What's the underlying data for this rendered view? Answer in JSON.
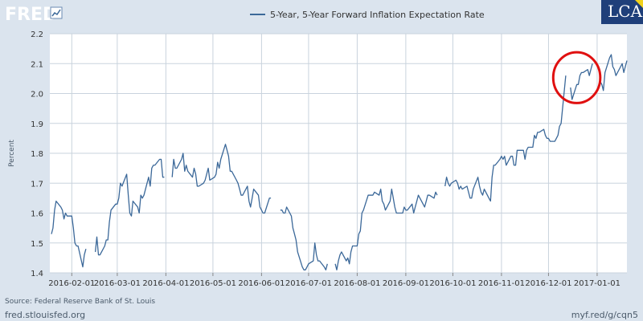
{
  "header": {
    "logo_text": "FRED",
    "badge_text": "LCA"
  },
  "footer": {
    "source": "Source: Federal Reserve Bank of St. Louis",
    "site": "fred.stlouisfed.org",
    "short_url": "myf.red/g/cqn5"
  },
  "colors": {
    "line": "#3b6899",
    "circle": "#e01010",
    "frame": "#dbe4ee",
    "grid": "#c9d3dd",
    "badge_bg": "#1f3f7a",
    "badge_accent": "#f2d21a"
  },
  "annotation": {
    "type": "circle",
    "x_center": "2016-12-19",
    "y_center": 2.053,
    "x_halfwidth_days": 15,
    "y_halfwidth": 0.085
  },
  "chart_data": {
    "type": "line",
    "title": "",
    "xlabel": "",
    "ylabel": "Percent",
    "ylim": [
      1.4,
      2.2
    ],
    "yticks": [
      1.4,
      1.5,
      1.6,
      1.7,
      1.8,
      1.9,
      2.0,
      2.1,
      2.2
    ],
    "ytick_labels": [
      "1.4",
      "1.5",
      "1.6",
      "1.7",
      "1.8",
      "1.9",
      "2.0",
      "2.1",
      "2.2"
    ],
    "xlim": [
      "2016-01-18",
      "2017-01-20"
    ],
    "xticks": [
      "2016-02-01",
      "2016-03-01",
      "2016-04-01",
      "2016-05-01",
      "2016-06-01",
      "2016-07-01",
      "2016-08-01",
      "2016-09-01",
      "2016-10-01",
      "2016-11-01",
      "2016-12-01",
      "2017-01-01"
    ],
    "grid": true,
    "legend": "top-center",
    "series": [
      {
        "name": "5-Year, 5-Year Forward Inflation Expectation Rate",
        "points": [
          [
            "2016-01-19",
            1.53
          ],
          [
            "2016-01-20",
            1.55
          ],
          [
            "2016-01-21",
            1.61
          ],
          [
            "2016-01-22",
            1.64
          ],
          [
            "2016-01-25",
            1.62
          ],
          [
            "2016-01-26",
            1.61
          ],
          [
            "2016-01-27",
            1.58
          ],
          [
            "2016-01-28",
            1.6
          ],
          [
            "2016-01-29",
            1.59
          ],
          [
            "2016-02-01",
            1.59
          ],
          [
            "2016-02-02",
            1.55
          ],
          [
            "2016-02-03",
            1.5
          ],
          [
            "2016-02-04",
            1.49
          ],
          [
            "2016-02-05",
            1.49
          ],
          [
            "2016-02-08",
            1.42
          ],
          [
            "2016-02-09",
            1.46
          ],
          [
            "2016-02-10",
            1.48
          ],
          [
            "2016-02-11",
            null
          ],
          [
            "2016-02-16",
            1.47
          ],
          [
            "2016-02-17",
            1.52
          ],
          [
            "2016-02-18",
            1.46
          ],
          [
            "2016-02-19",
            1.46
          ],
          [
            "2016-02-22",
            1.49
          ],
          [
            "2016-02-23",
            1.51
          ],
          [
            "2016-02-24",
            1.51
          ],
          [
            "2016-02-25",
            1.57
          ],
          [
            "2016-02-26",
            1.61
          ],
          [
            "2016-02-29",
            1.63
          ],
          [
            "2016-03-01",
            1.63
          ],
          [
            "2016-03-02",
            1.65
          ],
          [
            "2016-03-03",
            1.7
          ],
          [
            "2016-03-04",
            1.69
          ],
          [
            "2016-03-07",
            1.73
          ],
          [
            "2016-03-08",
            1.66
          ],
          [
            "2016-03-09",
            1.6
          ],
          [
            "2016-03-10",
            1.59
          ],
          [
            "2016-03-11",
            1.64
          ],
          [
            "2016-03-14",
            1.62
          ],
          [
            "2016-03-15",
            1.6
          ],
          [
            "2016-03-16",
            1.66
          ],
          [
            "2016-03-17",
            1.65
          ],
          [
            "2016-03-18",
            1.66
          ],
          [
            "2016-03-21",
            1.72
          ],
          [
            "2016-03-22",
            1.69
          ],
          [
            "2016-03-23",
            1.75
          ],
          [
            "2016-03-24",
            1.76
          ],
          [
            "2016-03-25",
            1.76
          ],
          [
            "2016-03-28",
            1.78
          ],
          [
            "2016-03-29",
            1.78
          ],
          [
            "2016-03-30",
            1.72
          ],
          [
            "2016-03-31",
            1.72
          ],
          [
            "2016-04-01",
            null
          ],
          [
            "2016-04-05",
            1.72
          ],
          [
            "2016-04-06",
            1.78
          ],
          [
            "2016-04-07",
            1.75
          ],
          [
            "2016-04-08",
            1.75
          ],
          [
            "2016-04-11",
            1.78
          ],
          [
            "2016-04-12",
            1.8
          ],
          [
            "2016-04-13",
            1.74
          ],
          [
            "2016-04-14",
            1.76
          ],
          [
            "2016-04-15",
            1.74
          ],
          [
            "2016-04-18",
            1.72
          ],
          [
            "2016-04-19",
            1.75
          ],
          [
            "2016-04-20",
            1.73
          ],
          [
            "2016-04-21",
            1.69
          ],
          [
            "2016-04-22",
            1.69
          ],
          [
            "2016-04-25",
            1.7
          ],
          [
            "2016-04-26",
            1.71
          ],
          [
            "2016-04-27",
            1.73
          ],
          [
            "2016-04-28",
            1.75
          ],
          [
            "2016-04-29",
            1.71
          ],
          [
            "2016-05-02",
            1.72
          ],
          [
            "2016-05-03",
            1.73
          ],
          [
            "2016-05-04",
            1.77
          ],
          [
            "2016-05-05",
            1.75
          ],
          [
            "2016-05-06",
            1.78
          ],
          [
            "2016-05-09",
            1.83
          ],
          [
            "2016-05-10",
            1.81
          ],
          [
            "2016-05-11",
            1.79
          ],
          [
            "2016-05-12",
            1.74
          ],
          [
            "2016-05-13",
            1.74
          ],
          [
            "2016-05-16",
            1.71
          ],
          [
            "2016-05-17",
            1.7
          ],
          [
            "2016-05-18",
            1.68
          ],
          [
            "2016-05-19",
            1.66
          ],
          [
            "2016-05-20",
            1.66
          ],
          [
            "2016-05-23",
            1.69
          ],
          [
            "2016-05-24",
            1.64
          ],
          [
            "2016-05-25",
            1.62
          ],
          [
            "2016-05-26",
            1.65
          ],
          [
            "2016-05-27",
            1.68
          ],
          [
            "2016-05-30",
            1.66
          ],
          [
            "2016-05-31",
            1.62
          ],
          [
            "2016-06-01",
            1.61
          ],
          [
            "2016-06-02",
            1.6
          ],
          [
            "2016-06-03",
            1.6
          ],
          [
            "2016-06-06",
            1.65
          ],
          [
            "2016-06-07",
            1.65
          ],
          [
            "2016-06-08",
            null
          ],
          [
            "2016-06-13",
            1.61
          ],
          [
            "2016-06-14",
            1.61
          ],
          [
            "2016-06-15",
            1.6
          ],
          [
            "2016-06-16",
            1.6
          ],
          [
            "2016-06-17",
            1.62
          ],
          [
            "2016-06-20",
            1.59
          ],
          [
            "2016-06-21",
            1.55
          ],
          [
            "2016-06-22",
            1.53
          ],
          [
            "2016-06-23",
            1.51
          ],
          [
            "2016-06-24",
            1.47
          ],
          [
            "2016-06-27",
            1.42
          ],
          [
            "2016-06-28",
            1.41
          ],
          [
            "2016-06-29",
            1.41
          ],
          [
            "2016-06-30",
            1.42
          ],
          [
            "2016-07-01",
            1.43
          ],
          [
            "2016-07-04",
            1.44
          ],
          [
            "2016-07-05",
            1.5
          ],
          [
            "2016-07-06",
            1.46
          ],
          [
            "2016-07-07",
            1.44
          ],
          [
            "2016-07-08",
            1.44
          ],
          [
            "2016-07-11",
            1.42
          ],
          [
            "2016-07-12",
            1.41
          ],
          [
            "2016-07-13",
            1.43
          ],
          [
            "2016-07-14",
            null
          ],
          [
            "2016-07-18",
            1.43
          ],
          [
            "2016-07-19",
            1.41
          ],
          [
            "2016-07-20",
            1.44
          ],
          [
            "2016-07-21",
            1.46
          ],
          [
            "2016-07-22",
            1.47
          ],
          [
            "2016-07-25",
            1.44
          ],
          [
            "2016-07-26",
            1.45
          ],
          [
            "2016-07-27",
            1.43
          ],
          [
            "2016-07-28",
            1.47
          ],
          [
            "2016-07-29",
            1.49
          ],
          [
            "2016-08-01",
            1.49
          ],
          [
            "2016-08-02",
            1.53
          ],
          [
            "2016-08-03",
            1.54
          ],
          [
            "2016-08-04",
            1.6
          ],
          [
            "2016-08-05",
            1.61
          ],
          [
            "2016-08-08",
            1.66
          ],
          [
            "2016-08-09",
            1.66
          ],
          [
            "2016-08-10",
            1.66
          ],
          [
            "2016-08-11",
            1.66
          ],
          [
            "2016-08-12",
            1.67
          ],
          [
            "2016-08-15",
            1.66
          ],
          [
            "2016-08-16",
            1.68
          ],
          [
            "2016-08-17",
            1.64
          ],
          [
            "2016-08-18",
            1.63
          ],
          [
            "2016-08-19",
            1.61
          ],
          [
            "2016-08-22",
            1.64
          ],
          [
            "2016-08-23",
            1.68
          ],
          [
            "2016-08-24",
            1.65
          ],
          [
            "2016-08-25",
            1.62
          ],
          [
            "2016-08-26",
            1.6
          ],
          [
            "2016-08-29",
            1.6
          ],
          [
            "2016-08-30",
            1.6
          ],
          [
            "2016-08-31",
            1.62
          ],
          [
            "2016-09-01",
            1.61
          ],
          [
            "2016-09-02",
            1.61
          ],
          [
            "2016-09-05",
            1.63
          ],
          [
            "2016-09-06",
            1.6
          ],
          [
            "2016-09-07",
            1.62
          ],
          [
            "2016-09-08",
            1.64
          ],
          [
            "2016-09-09",
            1.66
          ],
          [
            "2016-09-12",
            1.63
          ],
          [
            "2016-09-13",
            1.62
          ],
          [
            "2016-09-14",
            1.64
          ],
          [
            "2016-09-15",
            1.66
          ],
          [
            "2016-09-16",
            1.66
          ],
          [
            "2016-09-19",
            1.65
          ],
          [
            "2016-09-20",
            1.67
          ],
          [
            "2016-09-21",
            1.66
          ],
          [
            "2016-09-22",
            null
          ],
          [
            "2016-09-26",
            1.69
          ],
          [
            "2016-09-27",
            1.72
          ],
          [
            "2016-09-28",
            1.7
          ],
          [
            "2016-09-29",
            1.69
          ],
          [
            "2016-09-30",
            1.7
          ],
          [
            "2016-10-03",
            1.71
          ],
          [
            "2016-10-04",
            1.7
          ],
          [
            "2016-10-05",
            1.68
          ],
          [
            "2016-10-06",
            1.69
          ],
          [
            "2016-10-07",
            1.68
          ],
          [
            "2016-10-10",
            1.69
          ],
          [
            "2016-10-11",
            1.67
          ],
          [
            "2016-10-12",
            1.65
          ],
          [
            "2016-10-13",
            1.65
          ],
          [
            "2016-10-14",
            1.68
          ],
          [
            "2016-10-17",
            1.72
          ],
          [
            "2016-10-18",
            1.69
          ],
          [
            "2016-10-19",
            1.67
          ],
          [
            "2016-10-20",
            1.66
          ],
          [
            "2016-10-21",
            1.68
          ],
          [
            "2016-10-24",
            1.65
          ],
          [
            "2016-10-25",
            1.64
          ],
          [
            "2016-10-26",
            1.72
          ],
          [
            "2016-10-27",
            1.76
          ],
          [
            "2016-10-28",
            1.76
          ],
          [
            "2016-10-31",
            1.78
          ],
          [
            "2016-11-01",
            1.79
          ],
          [
            "2016-11-02",
            1.78
          ],
          [
            "2016-11-03",
            1.79
          ],
          [
            "2016-11-04",
            1.76
          ],
          [
            "2016-11-07",
            1.79
          ],
          [
            "2016-11-08",
            1.79
          ],
          [
            "2016-11-09",
            1.76
          ],
          [
            "2016-11-10",
            1.76
          ],
          [
            "2016-11-11",
            1.81
          ],
          [
            "2016-11-14",
            1.81
          ],
          [
            "2016-11-15",
            1.81
          ],
          [
            "2016-11-16",
            1.78
          ],
          [
            "2016-11-17",
            1.81
          ],
          [
            "2016-11-18",
            1.82
          ],
          [
            "2016-11-21",
            1.82
          ],
          [
            "2016-11-22",
            1.86
          ],
          [
            "2016-11-23",
            1.85
          ],
          [
            "2016-11-24",
            1.87
          ],
          [
            "2016-11-25",
            1.87
          ],
          [
            "2016-11-28",
            1.88
          ],
          [
            "2016-11-29",
            1.86
          ],
          [
            "2016-11-30",
            1.85
          ],
          [
            "2016-12-01",
            1.85
          ],
          [
            "2016-12-02",
            1.84
          ],
          [
            "2016-12-05",
            1.84
          ],
          [
            "2016-12-06",
            1.85
          ],
          [
            "2016-12-07",
            1.86
          ],
          [
            "2016-12-08",
            1.89
          ],
          [
            "2016-12-09",
            1.9
          ],
          [
            "2016-12-12",
            2.06
          ],
          [
            "2016-12-13",
            null
          ],
          [
            "2016-12-15",
            2.02
          ],
          [
            "2016-12-16",
            1.98
          ],
          [
            "2016-12-19",
            2.03
          ],
          [
            "2016-12-20",
            2.03
          ],
          [
            "2016-12-21",
            2.06
          ],
          [
            "2016-12-22",
            2.07
          ],
          [
            "2016-12-23",
            2.07
          ],
          [
            "2016-12-26",
            2.08
          ],
          [
            "2016-12-27",
            2.06
          ],
          [
            "2016-12-28",
            2.08
          ],
          [
            "2016-12-29",
            2.1
          ],
          [
            "2016-12-30",
            null
          ],
          [
            "2017-01-03",
            2.04
          ],
          [
            "2017-01-04",
            2.03
          ],
          [
            "2017-01-05",
            2.01
          ],
          [
            "2017-01-06",
            2.07
          ],
          [
            "2017-01-09",
            2.12
          ],
          [
            "2017-01-10",
            2.13
          ],
          [
            "2017-01-11",
            2.09
          ],
          [
            "2017-01-12",
            2.08
          ],
          [
            "2017-01-13",
            2.06
          ],
          [
            "2017-01-16",
            2.09
          ],
          [
            "2017-01-17",
            2.1
          ],
          [
            "2017-01-18",
            2.07
          ],
          [
            "2017-01-19",
            2.09
          ],
          [
            "2017-01-20",
            2.11
          ]
        ]
      }
    ]
  }
}
